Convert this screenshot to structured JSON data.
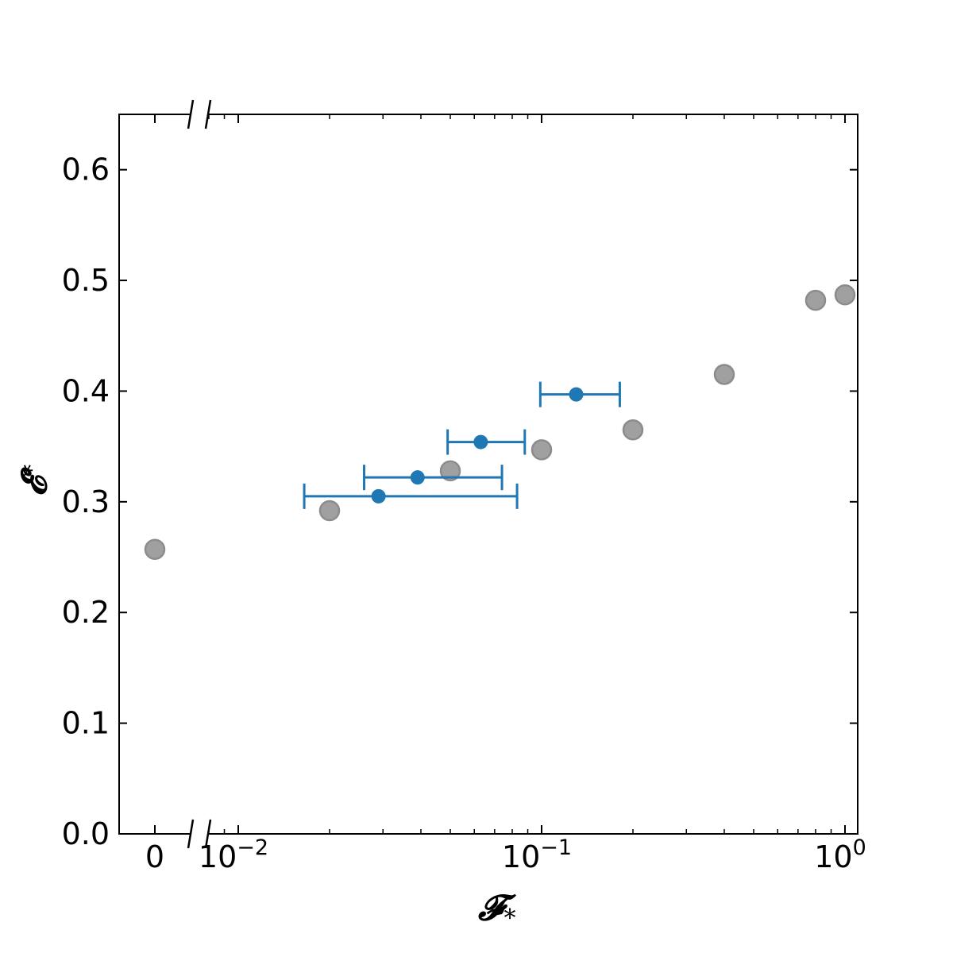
{
  "chart_data": {
    "type": "scatter",
    "title": "",
    "xlabel": "𝓕",
    "xlabel_sub": "*",
    "ylabel": "𝓔",
    "ylabel_sub": "*",
    "x_scale": "broken: linear zero segment + log",
    "xlim_log": [
      0.0075,
      1.1
    ],
    "ylim": [
      0.0,
      0.65
    ],
    "grid": false,
    "legend": "none",
    "x_ticks": [
      {
        "value": 0,
        "label": "0"
      },
      {
        "value": 0.01,
        "label": "10",
        "exp": "−2"
      },
      {
        "value": 0.1,
        "label": "10",
        "exp": "−1"
      },
      {
        "value": 1,
        "label": "10",
        "exp": "0"
      }
    ],
    "y_ticks": [
      "0.0",
      "0.1",
      "0.2",
      "0.3",
      "0.4",
      "0.5",
      "0.6"
    ],
    "series": [
      {
        "marker": "circle",
        "color": "#a0a0a0",
        "edge_color": "#8c8c8c",
        "points": [
          {
            "x": 0,
            "y": 0.257
          },
          {
            "x": 0.02,
            "y": 0.292
          },
          {
            "x": 0.05,
            "y": 0.328
          },
          {
            "x": 0.1,
            "y": 0.347
          },
          {
            "x": 0.2,
            "y": 0.365
          },
          {
            "x": 0.4,
            "y": 0.415
          },
          {
            "x": 0.8,
            "y": 0.482
          },
          {
            "x": 1.0,
            "y": 0.487
          }
        ]
      },
      {
        "marker": "circle-errorbar",
        "color": "#1f77b4",
        "points": [
          {
            "x": 0.029,
            "y": 0.305,
            "xerr_low": 0.0165,
            "xerr_high": 0.083
          },
          {
            "x": 0.039,
            "y": 0.322,
            "xerr_low": 0.026,
            "xerr_high": 0.074
          },
          {
            "x": 0.063,
            "y": 0.354,
            "xerr_low": 0.049,
            "xerr_high": 0.088
          },
          {
            "x": 0.13,
            "y": 0.397,
            "xerr_low": 0.099,
            "xerr_high": 0.181
          }
        ]
      }
    ]
  }
}
